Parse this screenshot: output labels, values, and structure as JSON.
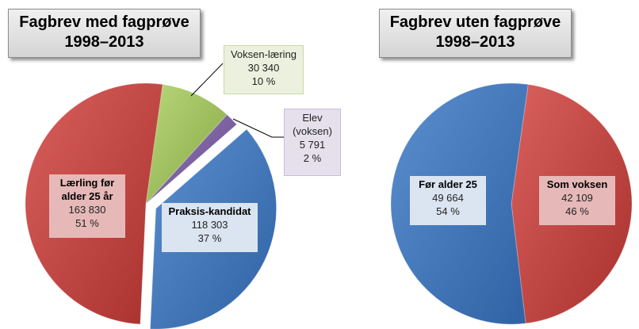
{
  "chart_data": [
    {
      "type": "pie",
      "title": "Fagbrev med fagprøve 1998–2013",
      "title_lines": [
        "Fagbrev med fagprøve",
        "1998–2013"
      ],
      "slices": [
        {
          "label_lines": [
            "Voksen-læring"
          ],
          "value": 30340,
          "value_text": "30 340",
          "percent": "10 %",
          "color": "#9bbb59"
        },
        {
          "label_lines": [
            "Elev",
            "(voksen)"
          ],
          "value": 5791,
          "value_text": "5 791",
          "percent": "2 %",
          "color": "#8064a2"
        },
        {
          "label_lines": [
            "Praksis-kandidat"
          ],
          "value": 118303,
          "value_text": "118 303",
          "percent": "37 %",
          "color": "#4f81bd"
        },
        {
          "label_lines": [
            "Lærling før",
            "alder 25 år"
          ],
          "value": 163830,
          "value_text": "163 830",
          "percent": "51 %",
          "color": "#c0504d"
        }
      ]
    },
    {
      "type": "pie",
      "title": "Fagbrev uten fagprøve 1998–2013",
      "title_lines": [
        "Fagbrev uten fagprøve",
        "1998–2013"
      ],
      "slices": [
        {
          "label_lines": [
            "Som voksen"
          ],
          "value": 42109,
          "value_text": "42 109",
          "percent": "46 %",
          "color": "#c0504d"
        },
        {
          "label_lines": [
            "Før alder 25"
          ],
          "value": 49664,
          "value_text": "49 664",
          "percent": "54 %",
          "color": "#4f81bd"
        }
      ]
    }
  ]
}
